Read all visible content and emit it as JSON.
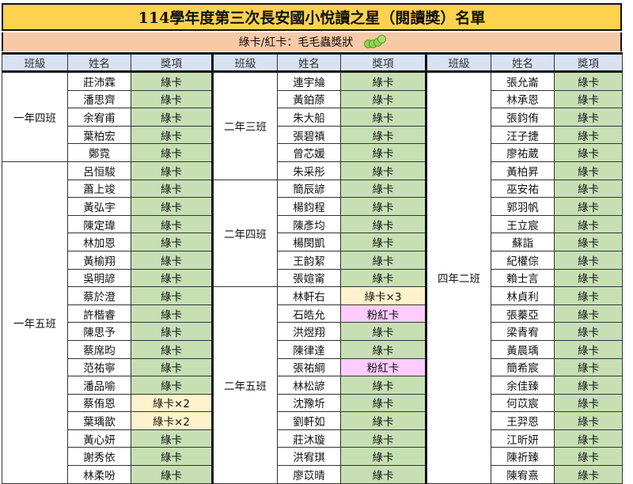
{
  "title": "114學年度第三次長安國小悅讀之星（閱讀獎）名單",
  "subtitle": "綠卡/紅卡：毛毛蟲獎狀",
  "subtitle_icon": "caterpillar-icon",
  "headers": [
    "班級",
    "姓名",
    "獎項"
  ],
  "colors": {
    "title_bg": "#fdd24f",
    "subtitle_bg": "#f8c9a6",
    "header_bg": "#d9e2f3",
    "green_card": "#c6e0b4",
    "multi_card": "#fff2cc",
    "pink_card": "#ffccff"
  },
  "columns": [
    {
      "groups": [
        {
          "class": "一年四班",
          "students": [
            [
              "莊沛霖",
              "綠卡"
            ],
            [
              "潘思齊",
              "綠卡"
            ],
            [
              "余宥甫",
              "綠卡"
            ],
            [
              "葉柏宏",
              "綠卡"
            ],
            [
              "鄭霓",
              "綠卡"
            ]
          ]
        },
        {
          "class": "一年五班",
          "students": [
            [
              "呂恒駿",
              "綠卡"
            ],
            [
              "蕭上竣",
              "綠卡"
            ],
            [
              "黃弘宇",
              "綠卡"
            ],
            [
              "陳定瑋",
              "綠卡"
            ],
            [
              "林加恩",
              "綠卡"
            ],
            [
              "黃榆翔",
              "綠卡"
            ],
            [
              "吳明諺",
              "綠卡"
            ],
            [
              "蔡於澄",
              "綠卡"
            ],
            [
              "許楷睿",
              "綠卡"
            ],
            [
              "陳思予",
              "綠卡"
            ],
            [
              "蔡席昀",
              "綠卡"
            ],
            [
              "范祐寧",
              "綠卡"
            ],
            [
              "潘品喻",
              "綠卡"
            ],
            [
              "蔡侑恩",
              "綠卡×2"
            ],
            [
              "葉瑀歆",
              "綠卡×2"
            ],
            [
              "黃心妍",
              "綠卡"
            ],
            [
              "謝秀依",
              "綠卡"
            ],
            [
              "林柔吩",
              "綠卡"
            ]
          ]
        }
      ]
    },
    {
      "groups": [
        {
          "class": "二年三班",
          "students": [
            [
              "連宇綸",
              "綠卡"
            ],
            [
              "黃鉑蒝",
              "綠卡"
            ],
            [
              "朱大船",
              "綠卡"
            ],
            [
              "張碧禛",
              "綠卡"
            ],
            [
              "曾芯媛",
              "綠卡"
            ],
            [
              "朱采彤",
              "綠卡"
            ]
          ]
        },
        {
          "class": "二年四班",
          "students": [
            [
              "簡辰諺",
              "綠卡"
            ],
            [
              "楊鈞程",
              "綠卡"
            ],
            [
              "陳彥均",
              "綠卡"
            ],
            [
              "楊閔凱",
              "綠卡"
            ],
            [
              "王韵絜",
              "綠卡"
            ],
            [
              "張媗甯",
              "綠卡"
            ]
          ]
        },
        {
          "class": "二年五班",
          "students": [
            [
              "林軒右",
              "綠卡×3"
            ],
            [
              "石皓允",
              "粉紅卡"
            ],
            [
              "洪煜翔",
              "綠卡"
            ],
            [
              "陳律達",
              "綠卡"
            ],
            [
              "張祐綱",
              "粉紅卡"
            ],
            [
              "林松諺",
              "綠卡"
            ],
            [
              "沈豫圻",
              "綠卡"
            ],
            [
              "劉軒如",
              "綠卡"
            ],
            [
              "莊沐璇",
              "綠卡"
            ],
            [
              "洪宥琪",
              "綠卡"
            ],
            [
              "廖苡晴",
              "綠卡"
            ]
          ]
        }
      ]
    },
    {
      "groups": [
        {
          "class": "四年二班",
          "students": [
            [
              "張允崙",
              "綠卡"
            ],
            [
              "林承恩",
              "綠卡"
            ],
            [
              "張鈞侑",
              "綠卡"
            ],
            [
              "汪子捷",
              "綠卡"
            ],
            [
              "廖祐葳",
              "綠卡"
            ],
            [
              "黃柏昇",
              "綠卡"
            ],
            [
              "巫安祐",
              "綠卡"
            ],
            [
              "郭羽帆",
              "綠卡"
            ],
            [
              "王立宸",
              "綠卡"
            ],
            [
              "蘇詣",
              "綠卡"
            ],
            [
              "紀權倧",
              "綠卡"
            ],
            [
              "賴士言",
              "綠卡"
            ],
            [
              "林貞利",
              "綠卡"
            ],
            [
              "張蓁亞",
              "綠卡"
            ],
            [
              "梁青宥",
              "綠卡"
            ],
            [
              "黃晨瑀",
              "綠卡"
            ],
            [
              "簡希宸",
              "綠卡"
            ],
            [
              "余佳臻",
              "綠卡"
            ],
            [
              "何苡宸",
              "綠卡"
            ],
            [
              "王羿恩",
              "綠卡"
            ],
            [
              "江昕妍",
              "綠卡"
            ],
            [
              "陳祈臻",
              "綠卡"
            ],
            [
              "陳宥熹",
              "綠卡"
            ]
          ]
        }
      ]
    }
  ]
}
